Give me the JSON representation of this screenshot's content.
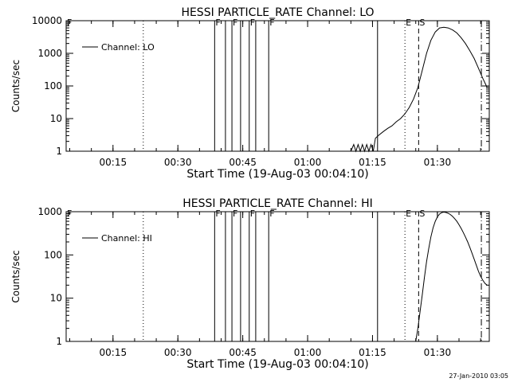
{
  "chart_data": [
    {
      "type": "line",
      "title": "HESSI PARTICLE_RATE Channel: LO",
      "xlabel": "Start Time (19-Aug-03 00:04:10)",
      "ylabel": "Counts/sec",
      "yscale": "log",
      "xlim": [
        "00:04:10",
        "01:42:00"
      ],
      "ylim": [
        1,
        10000
      ],
      "x_ticks": [
        "00:15",
        "00:30",
        "00:45",
        "01:00",
        "01:15",
        "01:30"
      ],
      "y_ticks": [
        "1",
        "10",
        "100",
        "1000",
        "10000"
      ],
      "legend": {
        "placement": "top-left",
        "label": "Channel: LO"
      },
      "series": [
        {
          "x": [
            "01:10:00",
            "01:10:40",
            "01:11:10",
            "01:11:40",
            "01:12:10",
            "01:12:40",
            "01:13:10",
            "01:13:40",
            "01:14:10",
            "01:14:40",
            "01:15:10",
            "01:15:40",
            "01:16:20",
            "01:17:30",
            "01:18:30",
            "01:19:30",
            "01:20:30",
            "01:21:30",
            "01:22:30",
            "01:23:30",
            "01:24:30",
            "01:25:30",
            "01:26:30",
            "01:27:30",
            "01:28:30",
            "01:29:30",
            "01:30:30",
            "01:31:30",
            "01:32:30",
            "01:33:30",
            "01:34:30",
            "01:35:30",
            "01:36:30",
            "01:37:30",
            "01:38:30",
            "01:39:30",
            "01:40:30",
            "01:41:30"
          ],
          "y": [
            1,
            1.6,
            1,
            1.6,
            1,
            1.6,
            1,
            1.6,
            1,
            1.6,
            1,
            2.5,
            3,
            4,
            5,
            6,
            8,
            10,
            14,
            22,
            40,
            90,
            300,
            1000,
            2500,
            4500,
            6000,
            6300,
            6000,
            5200,
            4200,
            3000,
            2000,
            1200,
            700,
            350,
            170,
            90
          ]
        }
      ],
      "markers": [
        {
          "label": "F",
          "x": "00:04:10",
          "style": "solid"
        },
        {
          "x": "00:22:00",
          "style": "dotted"
        },
        {
          "label": "F",
          "x": "00:38:30",
          "style": "solid"
        },
        {
          "x": "00:41:00",
          "style": "solid"
        },
        {
          "label": "F",
          "x": "00:42:30",
          "style": "solid"
        },
        {
          "x": "00:44:30",
          "style": "solid"
        },
        {
          "label": "F",
          "x": "00:46:30",
          "style": "solid"
        },
        {
          "x": "00:48:00",
          "style": "solid"
        },
        {
          "label": "F",
          "x": "00:51:00",
          "style": "solid"
        },
        {
          "x": "01:16:10",
          "style": "solid"
        },
        {
          "label": "E",
          "x": "01:22:30",
          "style": "dotted"
        },
        {
          "label": "S",
          "x": "01:25:40",
          "style": "dashed"
        },
        {
          "x": "01:40:10",
          "style": "dashdot"
        }
      ]
    },
    {
      "type": "line",
      "title": "HESSI PARTICLE_RATE Channel: HI",
      "xlabel": "Start Time (19-Aug-03 00:04:10)",
      "ylabel": "Counts/sec",
      "yscale": "log",
      "xlim": [
        "00:04:10",
        "01:42:00"
      ],
      "ylim": [
        1,
        1000
      ],
      "x_ticks": [
        "00:15",
        "00:30",
        "00:45",
        "01:00",
        "01:15",
        "01:30"
      ],
      "y_ticks": [
        "1",
        "10",
        "100",
        "1000"
      ],
      "legend": {
        "placement": "top-left",
        "label": "Channel: HI"
      },
      "series": [
        {
          "x": [
            "01:25:00",
            "01:25:30",
            "01:26:00",
            "01:26:30",
            "01:27:00",
            "01:27:30",
            "01:28:00",
            "01:28:30",
            "01:29:00",
            "01:29:30",
            "01:30:00",
            "01:30:30",
            "01:31:00",
            "01:31:30",
            "01:32:00",
            "01:32:30",
            "01:33:00",
            "01:33:30",
            "01:34:00",
            "01:34:30",
            "01:35:00",
            "01:35:30",
            "01:36:00",
            "01:36:30",
            "01:37:00",
            "01:37:30",
            "01:38:00",
            "01:38:30",
            "01:39:00",
            "01:39:30",
            "01:40:00",
            "01:40:30",
            "01:41:00",
            "01:41:30"
          ],
          "y": [
            1,
            2,
            5,
            12,
            30,
            70,
            140,
            260,
            420,
            600,
            760,
            880,
            950,
            980,
            960,
            920,
            860,
            780,
            690,
            600,
            500,
            410,
            330,
            260,
            200,
            150,
            110,
            80,
            58,
            42,
            32,
            26,
            22,
            20
          ]
        }
      ],
      "markers": [
        {
          "label": "F",
          "x": "00:04:10",
          "style": "solid"
        },
        {
          "x": "00:22:00",
          "style": "dotted"
        },
        {
          "label": "F",
          "x": "00:38:30",
          "style": "solid"
        },
        {
          "x": "00:41:00",
          "style": "solid"
        },
        {
          "label": "F",
          "x": "00:42:30",
          "style": "solid"
        },
        {
          "x": "00:44:30",
          "style": "solid"
        },
        {
          "label": "F",
          "x": "00:46:30",
          "style": "solid"
        },
        {
          "x": "00:48:00",
          "style": "solid"
        },
        {
          "label": "F",
          "x": "00:51:00",
          "style": "solid"
        },
        {
          "x": "01:16:10",
          "style": "solid"
        },
        {
          "label": "E",
          "x": "01:22:30",
          "style": "dotted"
        },
        {
          "label": "S",
          "x": "01:25:40",
          "style": "dashed"
        },
        {
          "x": "01:40:10",
          "style": "dashdot"
        }
      ]
    }
  ],
  "footer": {
    "timestamp": "27-Jan-2010 03:05"
  }
}
